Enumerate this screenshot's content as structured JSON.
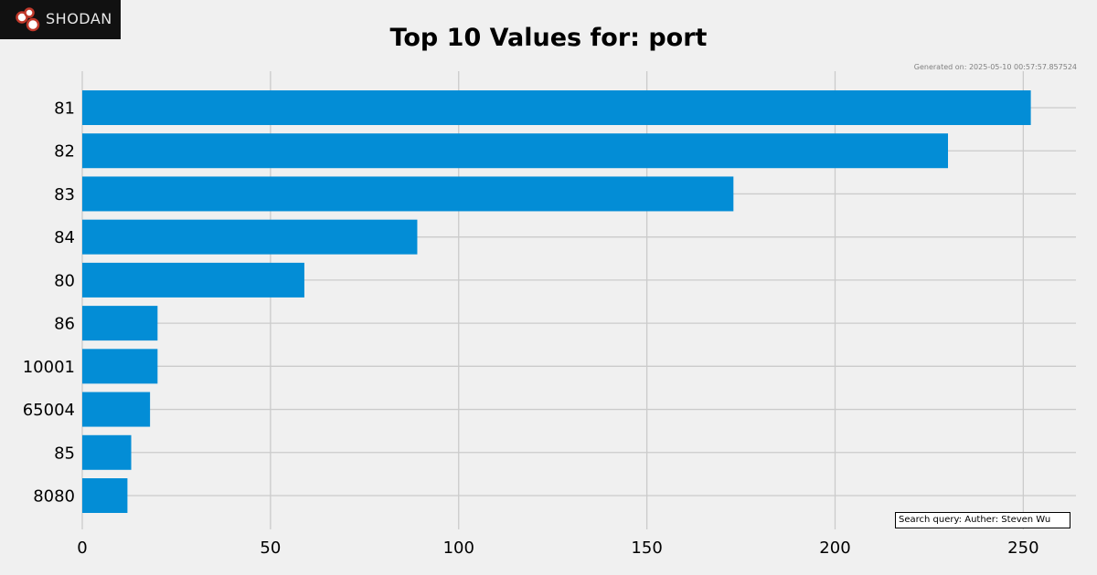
{
  "brand": {
    "name": "SHODAN"
  },
  "header": {
    "generated_text": "Generated on: 2025-05-10 00:57:57.857524"
  },
  "footer": {
    "query_text": "Search query: Auther: Steven Wu"
  },
  "colors": {
    "bar": "#038dd6",
    "background": "#f0f0f0",
    "grid": "#cbcbcb"
  },
  "chart_data": {
    "type": "bar",
    "orientation": "horizontal",
    "title": "Top 10 Values for: port",
    "xlabel": "",
    "ylabel": "",
    "categories": [
      "81",
      "82",
      "83",
      "84",
      "80",
      "86",
      "10001",
      "65004",
      "85",
      "8080"
    ],
    "values": [
      252,
      230,
      173,
      89,
      59,
      20,
      20,
      18,
      13,
      12
    ],
    "xlim": [
      0,
      264
    ],
    "xticks": [
      0,
      50,
      100,
      150,
      200,
      250
    ],
    "grid": true
  }
}
